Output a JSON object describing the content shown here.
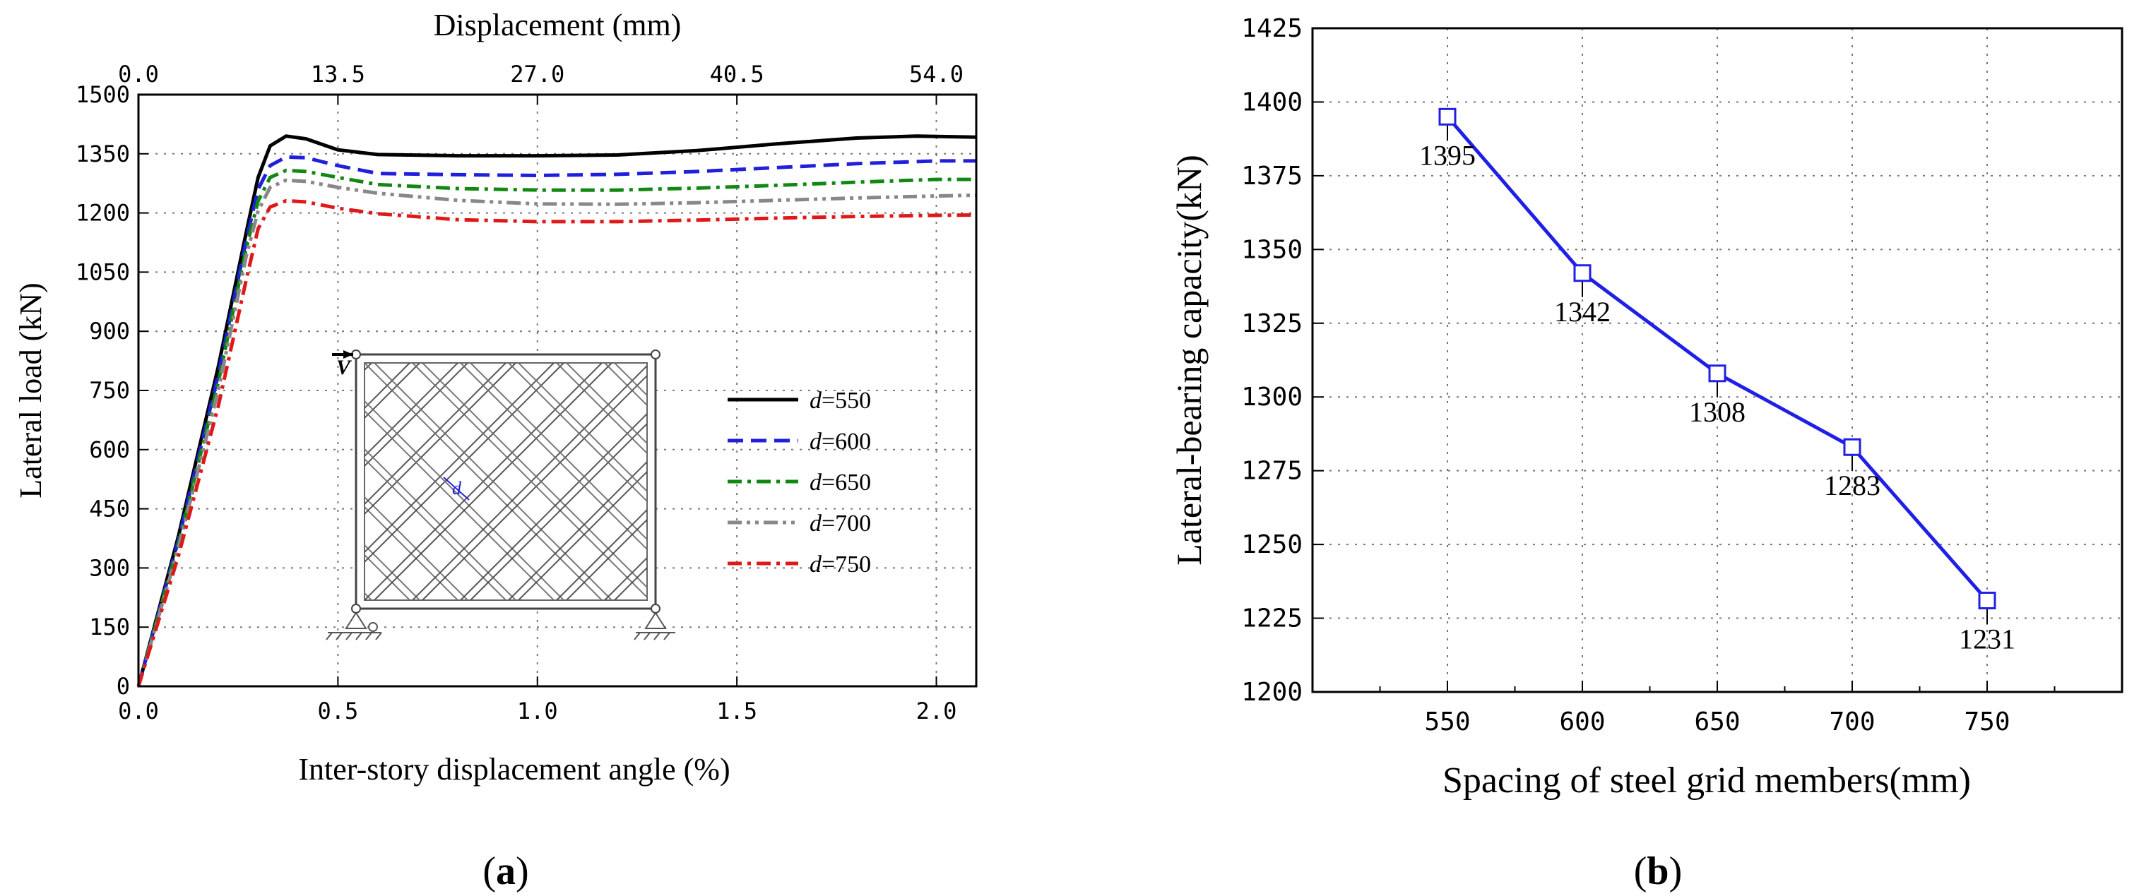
{
  "panel_labels": {
    "a": "a",
    "b": "b",
    "open": "(",
    "close": ")"
  },
  "chart_data": [
    {
      "id": "a",
      "type": "line",
      "title": "",
      "xlabel": "Inter-story displacement angle (%)",
      "ylabel": "Lateral load (kN)",
      "x2label": "Displacement (mm)",
      "xlim": [
        0,
        2.1
      ],
      "ylim": [
        0,
        1500
      ],
      "xticks": [
        "0.0",
        "0.5",
        "1.0",
        "1.5",
        "2.0"
      ],
      "xtick_values": [
        0,
        0.5,
        1.0,
        1.5,
        2.0
      ],
      "x2ticks": [
        "0.0",
        "13.5",
        "27.0",
        "40.5",
        "54.0"
      ],
      "x2tick_values": [
        0,
        0.5,
        1.0,
        1.5,
        2.0
      ],
      "yticks": [
        "0",
        "150",
        "300",
        "450",
        "600",
        "750",
        "900",
        "1050",
        "1200",
        "1350",
        "1500"
      ],
      "ytick_values": [
        0,
        150,
        300,
        450,
        600,
        750,
        900,
        1050,
        1200,
        1350,
        1500
      ],
      "grid": true,
      "legend_position": "center-right",
      "legend_prefix": "d",
      "inset": {
        "load_label": "V",
        "spacing_label": "d"
      },
      "series": [
        {
          "name": "=550",
          "color": "#000000",
          "dash": "solid",
          "x": [
            0,
            0.1,
            0.2,
            0.27,
            0.3,
            0.33,
            0.37,
            0.42,
            0.5,
            0.6,
            0.8,
            1.0,
            1.2,
            1.4,
            1.6,
            1.8,
            1.95,
            2.1
          ],
          "y": [
            0,
            380,
            810,
            1150,
            1290,
            1370,
            1395,
            1388,
            1360,
            1348,
            1345,
            1345,
            1347,
            1358,
            1375,
            1390,
            1395,
            1392
          ]
        },
        {
          "name": "=600",
          "color": "#1f1fdc",
          "dash": "dash",
          "x": [
            0,
            0.1,
            0.2,
            0.27,
            0.3,
            0.33,
            0.37,
            0.42,
            0.5,
            0.6,
            0.8,
            1.0,
            1.2,
            1.4,
            1.6,
            1.8,
            2.0,
            2.1
          ],
          "y": [
            0,
            370,
            790,
            1130,
            1260,
            1320,
            1342,
            1340,
            1320,
            1300,
            1297,
            1295,
            1298,
            1305,
            1315,
            1325,
            1332,
            1332
          ]
        },
        {
          "name": "=650",
          "color": "#118811",
          "dash": "dashdot",
          "x": [
            0,
            0.1,
            0.2,
            0.27,
            0.3,
            0.33,
            0.37,
            0.42,
            0.5,
            0.6,
            0.8,
            1.0,
            1.2,
            1.4,
            1.6,
            1.8,
            2.0,
            2.1
          ],
          "y": [
            0,
            360,
            770,
            1110,
            1230,
            1290,
            1308,
            1305,
            1290,
            1272,
            1262,
            1258,
            1258,
            1263,
            1270,
            1278,
            1285,
            1285
          ]
        },
        {
          "name": "=700",
          "color": "#888888",
          "dash": "dashdotdot",
          "x": [
            0,
            0.1,
            0.2,
            0.27,
            0.3,
            0.33,
            0.37,
            0.42,
            0.5,
            0.6,
            0.8,
            1.0,
            1.2,
            1.4,
            1.6,
            1.8,
            2.0,
            2.1
          ],
          "y": [
            0,
            350,
            750,
            1090,
            1205,
            1265,
            1283,
            1280,
            1265,
            1250,
            1232,
            1223,
            1222,
            1226,
            1232,
            1238,
            1243,
            1245
          ]
        },
        {
          "name": "=750",
          "color": "#e01818",
          "dash": "dashdot",
          "x": [
            0,
            0.1,
            0.2,
            0.27,
            0.3,
            0.33,
            0.37,
            0.42,
            0.5,
            0.6,
            0.8,
            1.0,
            1.2,
            1.4,
            1.6,
            1.8,
            2.0,
            2.1
          ],
          "y": [
            0,
            330,
            710,
            1030,
            1160,
            1215,
            1231,
            1228,
            1212,
            1198,
            1183,
            1178,
            1178,
            1182,
            1187,
            1191,
            1194,
            1195
          ]
        }
      ]
    },
    {
      "id": "b",
      "type": "line",
      "title": "",
      "xlabel": "Spacing of steel grid members(mm)",
      "ylabel": "Lateral-bearing capacity(kN)",
      "xlim": [
        500,
        800
      ],
      "ylim": [
        1200,
        1425
      ],
      "xticks": [
        "550",
        "600",
        "650",
        "700",
        "750"
      ],
      "xtick_values": [
        550,
        600,
        650,
        700,
        750
      ],
      "yticks": [
        "1200",
        "1225",
        "1250",
        "1275",
        "1300",
        "1325",
        "1350",
        "1375",
        "1400",
        "1425"
      ],
      "ytick_values": [
        1200,
        1225,
        1250,
        1275,
        1300,
        1325,
        1350,
        1375,
        1400,
        1425
      ],
      "grid": true,
      "series": [
        {
          "name": "Lateral-bearing capacity",
          "color": "#1f1fe6",
          "marker": "open-square",
          "x": [
            550,
            600,
            650,
            700,
            750
          ],
          "y": [
            1395,
            1342,
            1308,
            1283,
            1231
          ],
          "labels": [
            "1395",
            "1342",
            "1308",
            "1283",
            "1231"
          ]
        }
      ]
    }
  ]
}
